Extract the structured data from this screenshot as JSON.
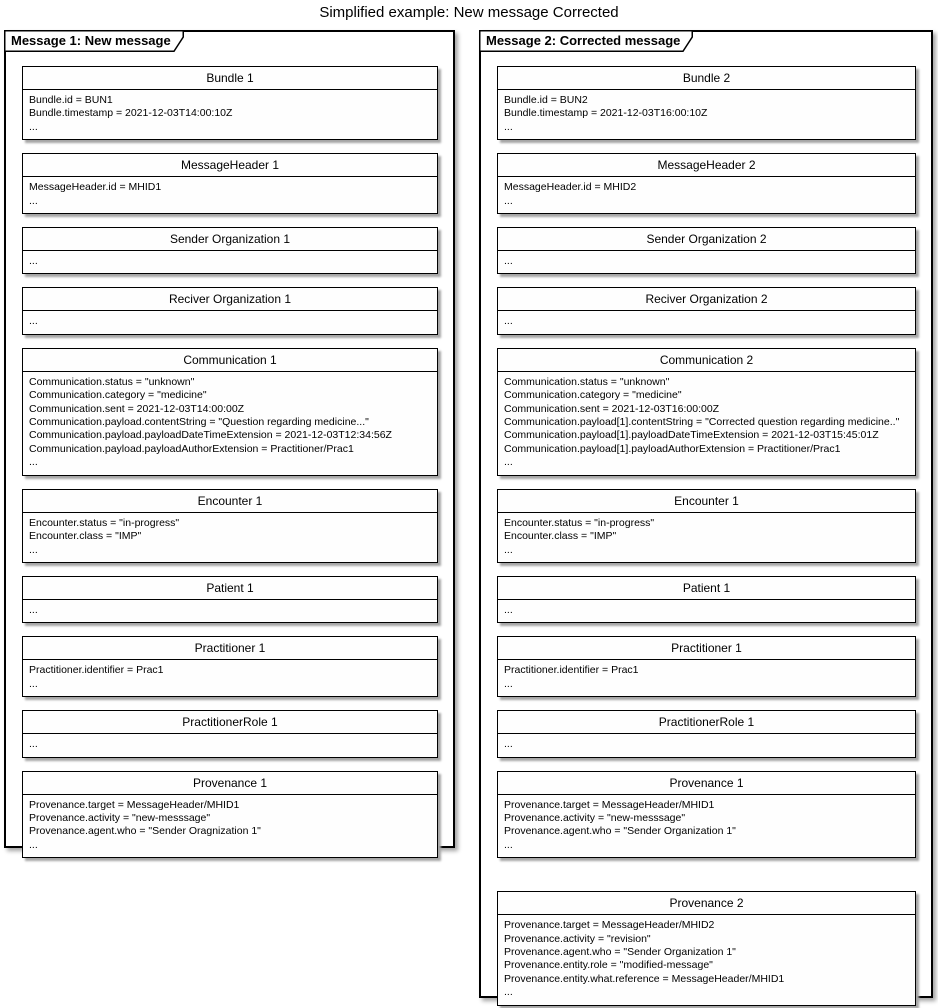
{
  "title": "Simplified example: New message Corrected",
  "colors": {
    "border": "#000000",
    "background": "#ffffff",
    "shadow": "#a6a6a6"
  },
  "frames": [
    {
      "label": "Message 1: New message",
      "objects": [
        {
          "title": "Bundle 1",
          "lines": [
            "Bundle.id = BUN1",
            "Bundle.timestamp = 2021-12-03T14:00:10Z",
            "..."
          ]
        },
        {
          "title": "MessageHeader 1",
          "lines": [
            "MessageHeader.id = MHID1",
            "..."
          ]
        },
        {
          "title": "Sender Organization 1",
          "lines": [
            "..."
          ]
        },
        {
          "title": "Reciver Organization 1",
          "lines": [
            "..."
          ]
        },
        {
          "title": "Communication 1",
          "lines": [
            "Communication.status = \"unknown\"",
            "Communication.category = \"medicine\"",
            "Communication.sent = 2021-12-03T14:00:00Z",
            "Communication.payload.contentString = \"Question regarding medicine...\"",
            "Communication.payload.payloadDateTimeExtension = 2021-12-03T12:34:56Z",
            "Communication.payload.payloadAuthorExtension = Practitioner/Prac1",
            "..."
          ]
        },
        {
          "title": "Encounter 1",
          "lines": [
            "Encounter.status = \"in-progress\"",
            "Encounter.class = \"IMP\"",
            "..."
          ]
        },
        {
          "title": "Patient 1",
          "lines": [
            "..."
          ]
        },
        {
          "title": "Practitioner 1",
          "lines": [
            "Practitioner.identifier = Prac1",
            "..."
          ]
        },
        {
          "title": "PractitionerRole 1",
          "lines": [
            "..."
          ]
        },
        {
          "title": "Provenance 1",
          "lines": [
            "Provenance.target = MessageHeader/MHID1",
            "Provenance.activity = \"new-messsage\"",
            "Provenance.agent.who = \"Sender Oragnization 1\"",
            "..."
          ]
        }
      ]
    },
    {
      "label": "Message 2: Corrected message",
      "objects": [
        {
          "title": "Bundle 2",
          "lines": [
            "Bundle.id = BUN2",
            "Bundle.timestamp = 2021-12-03T16:00:10Z",
            "..."
          ]
        },
        {
          "title": "MessageHeader 2",
          "lines": [
            "MessageHeader.id = MHID2",
            "..."
          ]
        },
        {
          "title": "Sender Organization 2",
          "lines": [
            "..."
          ]
        },
        {
          "title": "Reciver Organization 2",
          "lines": [
            "..."
          ]
        },
        {
          "title": "Communication 2",
          "lines": [
            "Communication.status = \"unknown\"",
            "Communication.category = \"medicine\"",
            "Communication.sent = 2021-12-03T16:00:00Z",
            "Communication.payload[1].contentString = \"Corrected question regarding medicine..\"",
            "Communication.payload[1].payloadDateTimeExtension = 2021-12-03T15:45:01Z",
            "Communication.payload[1].payloadAuthorExtension = Practitioner/Prac1",
            "..."
          ]
        },
        {
          "title": "Encounter 1",
          "lines": [
            "Encounter.status = \"in-progress\"",
            "Encounter.class = \"IMP\"",
            "..."
          ]
        },
        {
          "title": "Patient 1",
          "lines": [
            "..."
          ]
        },
        {
          "title": "Practitioner 1",
          "lines": [
            "Practitioner.identifier = Prac1",
            "..."
          ]
        },
        {
          "title": "PractitionerRole 1",
          "lines": [
            "..."
          ]
        },
        {
          "title": "Provenance 1",
          "lines": [
            "Provenance.target = MessageHeader/MHID1",
            "Provenance.activity = \"new-messsage\"",
            "Provenance.agent.who = \"Sender Organization 1\"",
            "..."
          ]
        },
        {
          "title": "Provenance 2",
          "lines": [
            "Provenance.target = MessageHeader/MHID2",
            "Provenance.activity = \"revision\"",
            "Provenance.agent.who = \"Sender Organization 1\"",
            "Provenance.entity.role = \"modified-message\"",
            "Provenance.entity.what.reference = MessageHeader/MHID1",
            "..."
          ]
        }
      ]
    }
  ]
}
